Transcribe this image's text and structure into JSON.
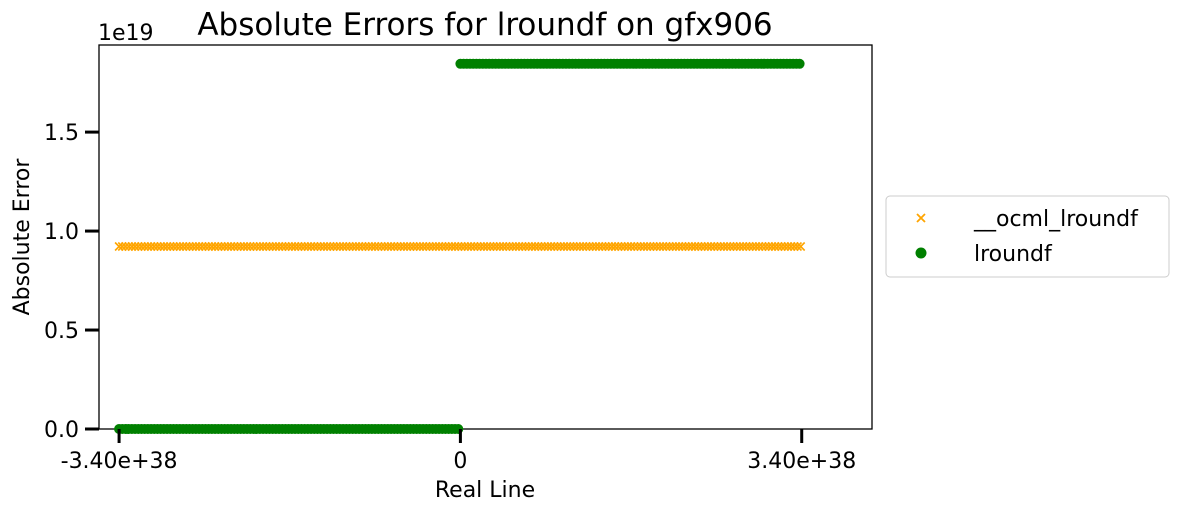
{
  "chart_data": {
    "type": "scatter",
    "title": "Absolute Errors for lroundf on gfx906",
    "xlabel": "Real Line",
    "ylabel": "Absolute Error",
    "y_offset_label": "1e19",
    "xlim": [
      -3.6e+38,
      4.1e+38
    ],
    "ylim": [
      0,
      1.94
    ],
    "x_ticks": [
      {
        "value": -3.4e+38,
        "label": "-3.40e+38"
      },
      {
        "value": 0,
        "label": "0"
      },
      {
        "value": 3.4e+38,
        "label": "3.40e+38"
      }
    ],
    "y_ticks": [
      {
        "value": 0.0,
        "label": "0.0"
      },
      {
        "value": 0.5,
        "label": "0.5"
      },
      {
        "value": 1.0,
        "label": "1.0"
      },
      {
        "value": 1.5,
        "label": "1.5"
      }
    ],
    "legend_position": "outside-right",
    "series": [
      {
        "name": "__ocml_lroundf",
        "marker": "x",
        "color": "#FFA500",
        "segments": [
          {
            "x_start": -3.4e+38,
            "x_end": 3.4e+38,
            "y": 0.922
          }
        ]
      },
      {
        "name": "lroundf",
        "marker": "circle",
        "color": "#008000",
        "segments": [
          {
            "x_start": -3.4e+38,
            "x_end": 0,
            "y": 0.0
          },
          {
            "x_start": 0,
            "x_end": 3.4e+38,
            "y": 1.845
          }
        ]
      }
    ]
  }
}
